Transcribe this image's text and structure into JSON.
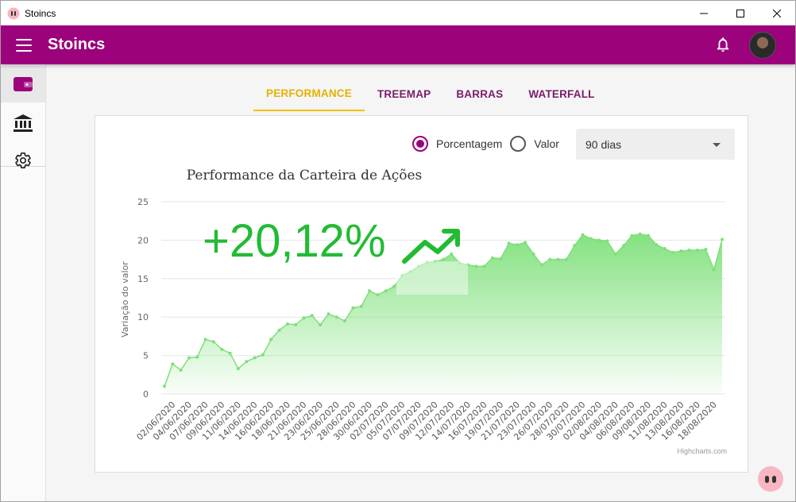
{
  "window": {
    "title": "Stoincs",
    "brand_color": "#9b027b",
    "accent_color": "#f2c200"
  },
  "appbar": {
    "title": "Stoincs",
    "menu_icon": "menu-icon",
    "notification_icon": "bell-icon",
    "avatar_icon": "user-avatar"
  },
  "sidebar": {
    "items": [
      {
        "name": "wallet",
        "icon": "wallet-icon",
        "active": true
      },
      {
        "name": "bank",
        "icon": "bank-icon",
        "active": false
      },
      {
        "name": "settings",
        "icon": "gear-icon",
        "active": false
      }
    ]
  },
  "tabs": [
    {
      "label": "PERFORMANCE",
      "active": true
    },
    {
      "label": "TREEMAP",
      "active": false
    },
    {
      "label": "BARRAS",
      "active": false
    },
    {
      "label": "WATERFALL",
      "active": false
    }
  ],
  "controls": {
    "radio_percent": "Porcentagem",
    "radio_value": "Valor",
    "selected_radio": "Porcentagem",
    "period_select": "90 dias"
  },
  "chart_data": {
    "type": "area",
    "title": "Performance da Carteira de Ações",
    "ylabel": "Variação do valor",
    "xlabel": "",
    "ylim": [
      0,
      25
    ],
    "yticks": [
      0,
      5,
      10,
      15,
      20,
      25
    ],
    "grid": true,
    "credits": "Highcharts.com",
    "highlight": "+20,12%",
    "color": "#7ee07a",
    "x": [
      "01/06/2020",
      "02/06/2020",
      "03/06/2020",
      "04/06/2020",
      "05/06/2020",
      "07/06/2020",
      "08/06/2020",
      "09/06/2020",
      "10/06/2020",
      "11/06/2020",
      "12/06/2020",
      "14/06/2020",
      "15/06/2020",
      "16/06/2020",
      "17/06/2020",
      "18/06/2020",
      "19/06/2020",
      "21/06/2020",
      "22/06/2020",
      "23/06/2020",
      "24/06/2020",
      "25/06/2020",
      "26/06/2020",
      "28/06/2020",
      "29/06/2020",
      "30/06/2020",
      "01/07/2020",
      "02/07/2020",
      "03/07/2020",
      "05/07/2020",
      "06/07/2020",
      "07/07/2020",
      "08/07/2020",
      "09/07/2020",
      "10/07/2020",
      "12/07/2020",
      "13/07/2020",
      "14/07/2020",
      "15/07/2020",
      "16/07/2020",
      "17/07/2020",
      "19/07/2020",
      "20/07/2020",
      "21/07/2020",
      "22/07/2020",
      "23/07/2020",
      "24/07/2020",
      "26/07/2020",
      "27/07/2020",
      "28/07/2020",
      "29/07/2020",
      "30/07/2020",
      "31/07/2020",
      "02/08/2020",
      "03/08/2020",
      "04/08/2020",
      "05/08/2020",
      "06/08/2020",
      "07/08/2020",
      "09/08/2020",
      "10/08/2020",
      "11/08/2020",
      "12/08/2020",
      "13/08/2020",
      "14/08/2020",
      "16/08/2020",
      "17/08/2020",
      "18/08/2020",
      "19/08/2020"
    ],
    "values": [
      1.0,
      3.9,
      3.1,
      4.7,
      4.8,
      7.1,
      6.8,
      5.8,
      5.3,
      3.3,
      4.2,
      4.7,
      5.1,
      7.1,
      8.3,
      9.1,
      9.0,
      9.9,
      10.2,
      9.0,
      10.4,
      10.0,
      9.5,
      11.2,
      11.4,
      13.4,
      12.9,
      13.4,
      14.0,
      15.4,
      15.9,
      16.6,
      17.1,
      17.2,
      17.5,
      18.2,
      17.0,
      16.8,
      16.6,
      16.6,
      17.7,
      17.6,
      19.6,
      19.4,
      19.7,
      18.2,
      16.8,
      17.5,
      17.5,
      17.5,
      19.3,
      20.7,
      20.2,
      20.0,
      19.9,
      18.2,
      19.3,
      20.6,
      20.8,
      20.6,
      19.4,
      18.9,
      18.4,
      18.6,
      18.7,
      18.7,
      18.8,
      16.2,
      20.1
    ],
    "xtick_labels": [
      "02/06/2020",
      "04/06/2020",
      "07/06/2020",
      "09/06/2020",
      "11/06/2020",
      "14/06/2020",
      "16/06/2020",
      "18/06/2020",
      "21/06/2020",
      "23/06/2020",
      "25/06/2020",
      "28/06/2020",
      "30/06/2020",
      "02/07/2020",
      "05/07/2020",
      "07/07/2020",
      "09/07/2020",
      "12/07/2020",
      "14/07/2020",
      "16/07/2020",
      "19/07/2020",
      "21/07/2020",
      "23/07/2020",
      "26/07/2020",
      "28/07/2020",
      "30/07/2020",
      "02/08/2020",
      "04/08/2020",
      "06/08/2020",
      "09/08/2020",
      "11/08/2020",
      "13/08/2020",
      "16/08/2020",
      "18/08/2020"
    ]
  }
}
